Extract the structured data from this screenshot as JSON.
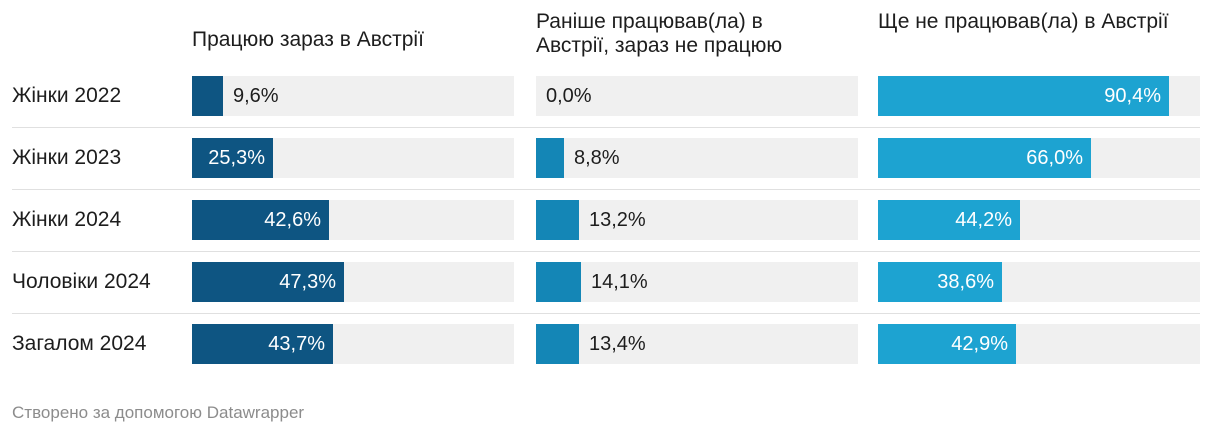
{
  "chart_data": {
    "type": "bar",
    "columns": [
      "Працюю зараз в Австрії",
      "Раніше працював(ла) в Австрії, зараз не працюю",
      "Ще не працював(ла) в Австрії"
    ],
    "categories": [
      "Жінки 2022",
      "Жінки 2023",
      "Жінки 2024",
      "Чоловіки 2024",
      "Загалом 2024"
    ],
    "series": [
      {
        "color": "#0e5582",
        "values": [
          9.6,
          25.3,
          42.6,
          47.3,
          43.7
        ],
        "labels": [
          "9,6%",
          "25,3%",
          "42,6%",
          "47,3%",
          "43,7%"
        ]
      },
      {
        "color": "#1486b6",
        "values": [
          0.0,
          8.8,
          13.2,
          14.1,
          13.4
        ],
        "labels": [
          "0,0%",
          "8,8%",
          "13,2%",
          "14,1%",
          "13,4%"
        ]
      },
      {
        "color": "#1da3d1",
        "values": [
          90.4,
          66.0,
          44.2,
          38.6,
          42.9
        ],
        "labels": [
          "90,4%",
          "66,0%",
          "44,2%",
          "38,6%",
          "42,9%"
        ]
      }
    ],
    "xlim": [
      0,
      100
    ]
  },
  "footer": "Створено за допомогою Datawrapper"
}
